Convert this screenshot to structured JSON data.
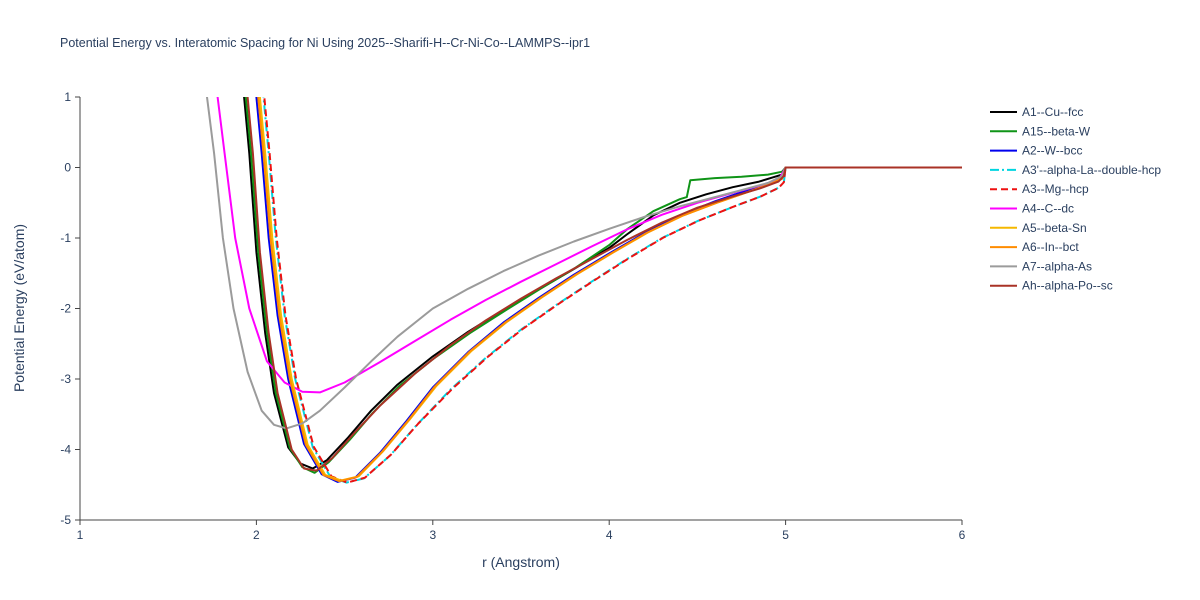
{
  "chart_data": {
    "type": "line",
    "title": "Potential Energy vs. Interatomic Spacing for Ni Using 2025--Sharifi-H--Cr-Ni-Co--LAMMPS--ipr1",
    "xlabel": "r (Angstrom)",
    "ylabel": "Potential Energy (eV/atom)",
    "xlim": [
      1,
      6
    ],
    "ylim": [
      -5,
      1
    ],
    "xticks": [
      1,
      2,
      3,
      4,
      5,
      6
    ],
    "yticks": [
      1,
      0,
      -1,
      -2,
      -3,
      -4,
      -5
    ],
    "grid": false,
    "legend_position": "right",
    "axis_color": "#444444",
    "text_color": "#2a3f5f",
    "series": [
      {
        "name": "A1--Cu--fcc",
        "color": "#000000",
        "dash": "solid",
        "points": [
          [
            1.9,
            1.6
          ],
          [
            1.93,
            1.0
          ],
          [
            1.96,
            0.2
          ],
          [
            2.0,
            -1.2
          ],
          [
            2.05,
            -2.35
          ],
          [
            2.1,
            -3.2
          ],
          [
            2.18,
            -3.97
          ],
          [
            2.25,
            -4.2
          ],
          [
            2.32,
            -4.27
          ],
          [
            2.4,
            -4.15
          ],
          [
            2.52,
            -3.83
          ],
          [
            2.65,
            -3.45
          ],
          [
            2.8,
            -3.08
          ],
          [
            3.0,
            -2.68
          ],
          [
            3.2,
            -2.33
          ],
          [
            3.4,
            -2.02
          ],
          [
            3.6,
            -1.73
          ],
          [
            3.8,
            -1.44
          ],
          [
            4.0,
            -1.14
          ],
          [
            4.1,
            -0.95
          ],
          [
            4.25,
            -0.68
          ],
          [
            4.4,
            -0.5
          ],
          [
            4.55,
            -0.38
          ],
          [
            4.7,
            -0.28
          ],
          [
            4.85,
            -0.2
          ],
          [
            4.98,
            -0.1
          ],
          [
            5.0,
            0.0
          ],
          [
            6.0,
            0.0
          ]
        ]
      },
      {
        "name": "A15--beta-W",
        "color": "#0f9417",
        "dash": "solid",
        "points": [
          [
            1.91,
            1.6
          ],
          [
            1.94,
            1.0
          ],
          [
            1.97,
            0.2
          ],
          [
            2.01,
            -1.2
          ],
          [
            2.06,
            -2.35
          ],
          [
            2.11,
            -3.2
          ],
          [
            2.19,
            -3.98
          ],
          [
            2.26,
            -4.25
          ],
          [
            2.33,
            -4.33
          ],
          [
            2.41,
            -4.18
          ],
          [
            2.53,
            -3.86
          ],
          [
            2.66,
            -3.48
          ],
          [
            2.81,
            -3.1
          ],
          [
            3.01,
            -2.7
          ],
          [
            3.21,
            -2.35
          ],
          [
            3.41,
            -2.03
          ],
          [
            3.61,
            -1.72
          ],
          [
            3.81,
            -1.42
          ],
          [
            4.0,
            -1.1
          ],
          [
            4.1,
            -0.88
          ],
          [
            4.25,
            -0.62
          ],
          [
            4.4,
            -0.45
          ],
          [
            4.44,
            -0.42
          ],
          [
            4.46,
            -0.18
          ],
          [
            4.6,
            -0.15
          ],
          [
            4.75,
            -0.13
          ],
          [
            4.9,
            -0.1
          ],
          [
            4.98,
            -0.06
          ],
          [
            5.0,
            0.0
          ],
          [
            6.0,
            0.0
          ]
        ]
      },
      {
        "name": "A2--W--bcc",
        "color": "#0000ee",
        "dash": "solid",
        "points": [
          [
            1.97,
            1.6
          ],
          [
            2.0,
            1.0
          ],
          [
            2.03,
            0.2
          ],
          [
            2.07,
            -1.0
          ],
          [
            2.12,
            -2.1
          ],
          [
            2.18,
            -3.0
          ],
          [
            2.27,
            -3.92
          ],
          [
            2.37,
            -4.35
          ],
          [
            2.46,
            -4.46
          ],
          [
            2.56,
            -4.4
          ],
          [
            2.7,
            -4.05
          ],
          [
            2.85,
            -3.6
          ],
          [
            3.0,
            -3.12
          ],
          [
            3.2,
            -2.62
          ],
          [
            3.4,
            -2.2
          ],
          [
            3.6,
            -1.85
          ],
          [
            3.8,
            -1.52
          ],
          [
            4.0,
            -1.22
          ],
          [
            4.2,
            -0.93
          ],
          [
            4.4,
            -0.68
          ],
          [
            4.6,
            -0.48
          ],
          [
            4.75,
            -0.35
          ],
          [
            4.9,
            -0.22
          ],
          [
            4.98,
            -0.14
          ],
          [
            5.0,
            0.0
          ],
          [
            6.0,
            0.0
          ]
        ]
      },
      {
        "name": "A3'--alpha-La--double-hcp",
        "color": "#00d5e0",
        "dash": "dashdot",
        "points": [
          [
            2.01,
            1.6
          ],
          [
            2.04,
            1.0
          ],
          [
            2.07,
            0.2
          ],
          [
            2.11,
            -1.0
          ],
          [
            2.16,
            -2.1
          ],
          [
            2.22,
            -3.0
          ],
          [
            2.32,
            -3.97
          ],
          [
            2.42,
            -4.39
          ],
          [
            2.51,
            -4.47
          ],
          [
            2.61,
            -4.41
          ],
          [
            2.76,
            -4.08
          ],
          [
            2.91,
            -3.65
          ],
          [
            3.1,
            -3.15
          ],
          [
            3.3,
            -2.7
          ],
          [
            3.5,
            -2.3
          ],
          [
            3.7,
            -1.95
          ],
          [
            3.9,
            -1.62
          ],
          [
            4.1,
            -1.3
          ],
          [
            4.3,
            -1.0
          ],
          [
            4.5,
            -0.76
          ],
          [
            4.7,
            -0.56
          ],
          [
            4.85,
            -0.42
          ],
          [
            4.95,
            -0.3
          ],
          [
            4.99,
            -0.22
          ],
          [
            5.0,
            0.0
          ],
          [
            6.0,
            0.0
          ]
        ]
      },
      {
        "name": "A3--Mg--hcp",
        "color": "#ee1111",
        "dash": "dash",
        "points": [
          [
            2.015,
            1.6
          ],
          [
            2.045,
            1.0
          ],
          [
            2.075,
            0.2
          ],
          [
            2.115,
            -1.0
          ],
          [
            2.165,
            -2.1
          ],
          [
            2.225,
            -3.0
          ],
          [
            2.325,
            -3.96
          ],
          [
            2.425,
            -4.38
          ],
          [
            2.515,
            -4.47
          ],
          [
            2.615,
            -4.4
          ],
          [
            2.765,
            -4.07
          ],
          [
            2.915,
            -3.64
          ],
          [
            3.11,
            -3.14
          ],
          [
            3.31,
            -2.69
          ],
          [
            3.51,
            -2.29
          ],
          [
            3.71,
            -1.94
          ],
          [
            3.91,
            -1.61
          ],
          [
            4.11,
            -1.29
          ],
          [
            4.31,
            -0.99
          ],
          [
            4.51,
            -0.75
          ],
          [
            4.71,
            -0.55
          ],
          [
            4.86,
            -0.41
          ],
          [
            4.96,
            -0.29
          ],
          [
            4.99,
            -0.21
          ],
          [
            5.0,
            0.0
          ],
          [
            6.0,
            0.0
          ]
        ]
      },
      {
        "name": "A4--C--dc",
        "color": "#ff00ff",
        "dash": "solid",
        "points": [
          [
            1.74,
            1.6
          ],
          [
            1.78,
            1.0
          ],
          [
            1.82,
            0.2
          ],
          [
            1.88,
            -1.0
          ],
          [
            1.96,
            -2.0
          ],
          [
            2.06,
            -2.75
          ],
          [
            2.16,
            -3.05
          ],
          [
            2.26,
            -3.18
          ],
          [
            2.36,
            -3.19
          ],
          [
            2.5,
            -3.05
          ],
          [
            2.7,
            -2.76
          ],
          [
            2.9,
            -2.46
          ],
          [
            3.1,
            -2.16
          ],
          [
            3.3,
            -1.88
          ],
          [
            3.5,
            -1.62
          ],
          [
            3.7,
            -1.37
          ],
          [
            3.9,
            -1.12
          ],
          [
            4.1,
            -0.88
          ],
          [
            4.3,
            -0.67
          ],
          [
            4.5,
            -0.5
          ],
          [
            4.7,
            -0.36
          ],
          [
            4.85,
            -0.26
          ],
          [
            4.96,
            -0.18
          ],
          [
            5.0,
            0.0
          ],
          [
            6.0,
            0.0
          ]
        ]
      },
      {
        "name": "A5--beta-Sn",
        "color": "#f5b800",
        "dash": "solid",
        "points": [
          [
            1.99,
            1.6
          ],
          [
            2.02,
            1.0
          ],
          [
            2.05,
            0.2
          ],
          [
            2.09,
            -1.0
          ],
          [
            2.14,
            -2.1
          ],
          [
            2.2,
            -3.0
          ],
          [
            2.29,
            -3.93
          ],
          [
            2.39,
            -4.36
          ],
          [
            2.48,
            -4.44
          ],
          [
            2.58,
            -4.38
          ],
          [
            2.72,
            -4.02
          ],
          [
            2.87,
            -3.57
          ],
          [
            3.02,
            -3.1
          ],
          [
            3.22,
            -2.6
          ],
          [
            3.42,
            -2.19
          ],
          [
            3.62,
            -1.84
          ],
          [
            3.82,
            -1.51
          ],
          [
            4.02,
            -1.21
          ],
          [
            4.22,
            -0.92
          ],
          [
            4.42,
            -0.68
          ],
          [
            4.62,
            -0.49
          ],
          [
            4.77,
            -0.36
          ],
          [
            4.92,
            -0.23
          ],
          [
            4.98,
            -0.15
          ],
          [
            5.0,
            0.0
          ],
          [
            6.0,
            0.0
          ]
        ]
      },
      {
        "name": "A6--In--bct",
        "color": "#ff8c00",
        "dash": "solid",
        "points": [
          [
            1.98,
            1.6
          ],
          [
            2.01,
            1.0
          ],
          [
            2.04,
            0.2
          ],
          [
            2.08,
            -1.0
          ],
          [
            2.13,
            -2.1
          ],
          [
            2.19,
            -3.0
          ],
          [
            2.28,
            -3.93
          ],
          [
            2.38,
            -4.36
          ],
          [
            2.47,
            -4.45
          ],
          [
            2.57,
            -4.39
          ],
          [
            2.71,
            -4.04
          ],
          [
            2.86,
            -3.59
          ],
          [
            3.01,
            -3.11
          ],
          [
            3.21,
            -2.61
          ],
          [
            3.41,
            -2.2
          ],
          [
            3.61,
            -1.85
          ],
          [
            3.81,
            -1.52
          ],
          [
            4.01,
            -1.22
          ],
          [
            4.21,
            -0.93
          ],
          [
            4.41,
            -0.69
          ],
          [
            4.61,
            -0.5
          ],
          [
            4.76,
            -0.37
          ],
          [
            4.91,
            -0.24
          ],
          [
            4.98,
            -0.16
          ],
          [
            5.0,
            0.0
          ],
          [
            6.0,
            0.0
          ]
        ]
      },
      {
        "name": "A7--alpha-As",
        "color": "#9b9b9b",
        "dash": "solid",
        "points": [
          [
            1.69,
            1.6
          ],
          [
            1.72,
            1.0
          ],
          [
            1.76,
            0.2
          ],
          [
            1.81,
            -1.0
          ],
          [
            1.87,
            -2.0
          ],
          [
            1.95,
            -2.9
          ],
          [
            2.03,
            -3.45
          ],
          [
            2.1,
            -3.65
          ],
          [
            2.17,
            -3.7
          ],
          [
            2.26,
            -3.63
          ],
          [
            2.36,
            -3.45
          ],
          [
            2.5,
            -3.12
          ],
          [
            2.65,
            -2.75
          ],
          [
            2.8,
            -2.4
          ],
          [
            3.0,
            -2.0
          ],
          [
            3.2,
            -1.72
          ],
          [
            3.4,
            -1.47
          ],
          [
            3.6,
            -1.25
          ],
          [
            3.8,
            -1.05
          ],
          [
            4.0,
            -0.87
          ],
          [
            4.2,
            -0.7
          ],
          [
            4.4,
            -0.55
          ],
          [
            4.6,
            -0.42
          ],
          [
            4.75,
            -0.32
          ],
          [
            4.9,
            -0.22
          ],
          [
            4.98,
            -0.12
          ],
          [
            5.0,
            0.0
          ],
          [
            6.0,
            0.0
          ]
        ]
      },
      {
        "name": "Ah--alpha-Po--sc",
        "color": "#a93226",
        "dash": "solid",
        "points": [
          [
            1.92,
            1.6
          ],
          [
            1.95,
            1.0
          ],
          [
            1.98,
            0.2
          ],
          [
            2.02,
            -1.2
          ],
          [
            2.07,
            -2.35
          ],
          [
            2.12,
            -3.2
          ],
          [
            2.2,
            -4.0
          ],
          [
            2.27,
            -4.27
          ],
          [
            2.34,
            -4.3
          ],
          [
            2.43,
            -4.12
          ],
          [
            2.55,
            -3.78
          ],
          [
            2.7,
            -3.38
          ],
          [
            2.9,
            -2.92
          ],
          [
            3.1,
            -2.52
          ],
          [
            3.3,
            -2.17
          ],
          [
            3.5,
            -1.86
          ],
          [
            3.7,
            -1.57
          ],
          [
            3.9,
            -1.3
          ],
          [
            4.1,
            -1.03
          ],
          [
            4.3,
            -0.78
          ],
          [
            4.5,
            -0.57
          ],
          [
            4.7,
            -0.41
          ],
          [
            4.85,
            -0.3
          ],
          [
            4.96,
            -0.2
          ],
          [
            4.99,
            -0.12
          ],
          [
            5.0,
            0.0
          ],
          [
            6.0,
            0.0
          ]
        ]
      }
    ]
  }
}
